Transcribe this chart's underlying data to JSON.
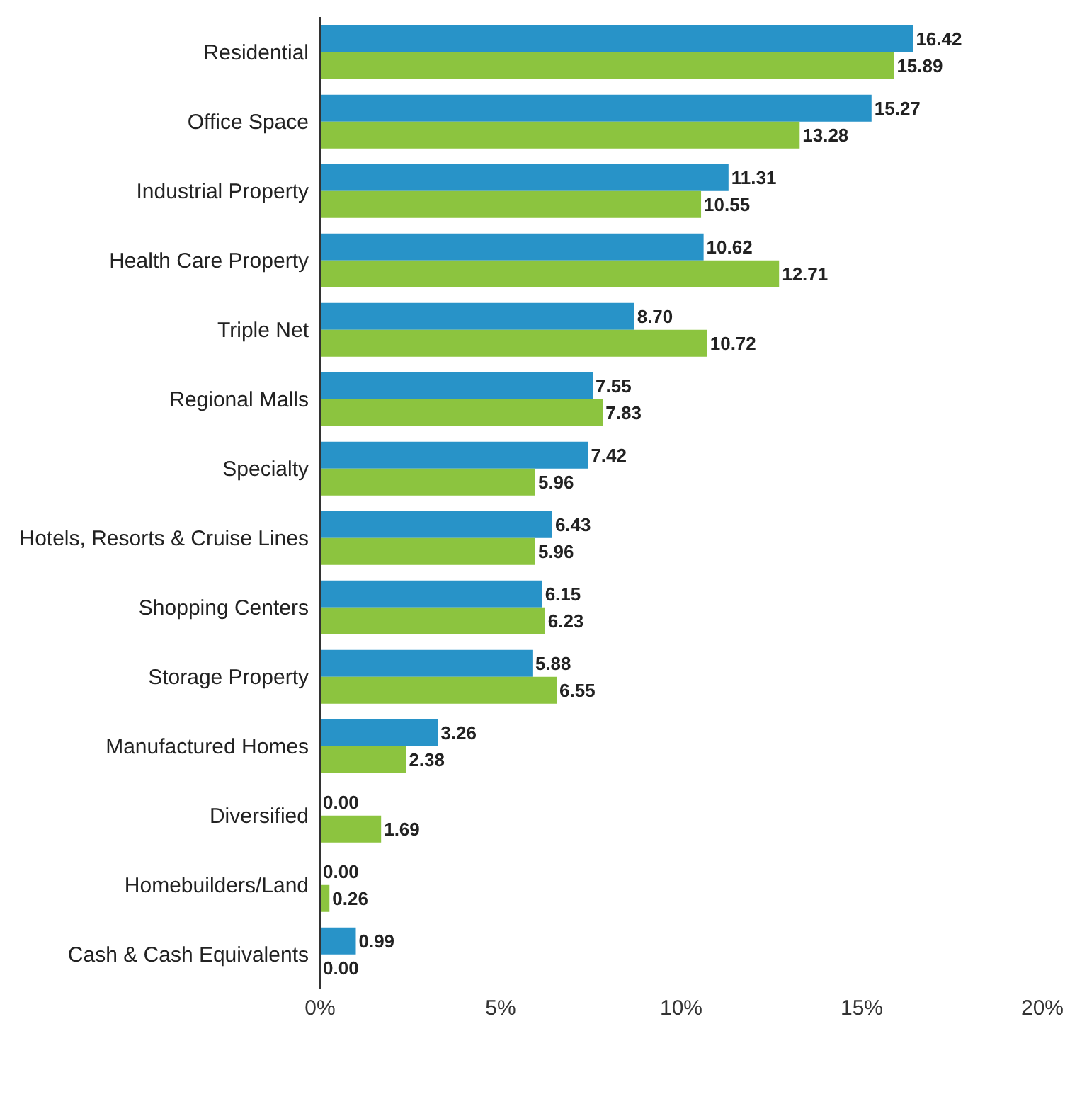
{
  "chart_data": {
    "type": "bar",
    "orientation": "horizontal",
    "categories": [
      "Residential",
      "Office Space",
      "Industrial Property",
      "Health Care Property",
      "Triple Net",
      "Regional Malls",
      "Specialty",
      "Hotels, Resorts & Cruise Lines",
      "Shopping Centers",
      "Storage Property",
      "Manufactured Homes",
      "Diversified",
      "Homebuilders/Land",
      "Cash & Cash Equivalents"
    ],
    "series": [
      {
        "color": "#2893c8",
        "values": [
          16.42,
          15.27,
          11.31,
          10.62,
          8.7,
          7.55,
          7.42,
          6.43,
          6.15,
          5.88,
          3.26,
          0.0,
          0.0,
          0.99
        ],
        "value_labels": [
          "16.42",
          "15.27",
          "11.31",
          "10.62",
          "8.70",
          "7.55",
          "7.42",
          "6.43",
          "6.15",
          "5.88",
          "3.26",
          "0.00",
          "0.00",
          "0.99"
        ]
      },
      {
        "color": "#8cc43f",
        "values": [
          15.89,
          13.28,
          10.55,
          12.71,
          10.72,
          7.83,
          5.96,
          5.96,
          6.23,
          6.55,
          2.38,
          1.69,
          0.26,
          0.0
        ],
        "value_labels": [
          "15.89",
          "13.28",
          "10.55",
          "12.71",
          "10.72",
          "7.83",
          "5.96",
          "5.96",
          "6.23",
          "6.55",
          "2.38",
          "1.69",
          "0.26",
          "0.00"
        ]
      }
    ],
    "xlim": [
      0,
      20
    ],
    "xticks": [
      {
        "value": 0,
        "label": "0%"
      },
      {
        "value": 5,
        "label": "5%"
      },
      {
        "value": 10,
        "label": "10%"
      },
      {
        "value": 15,
        "label": "15%"
      },
      {
        "value": 20,
        "label": "20%"
      }
    ],
    "grid": false,
    "legend": false
  }
}
